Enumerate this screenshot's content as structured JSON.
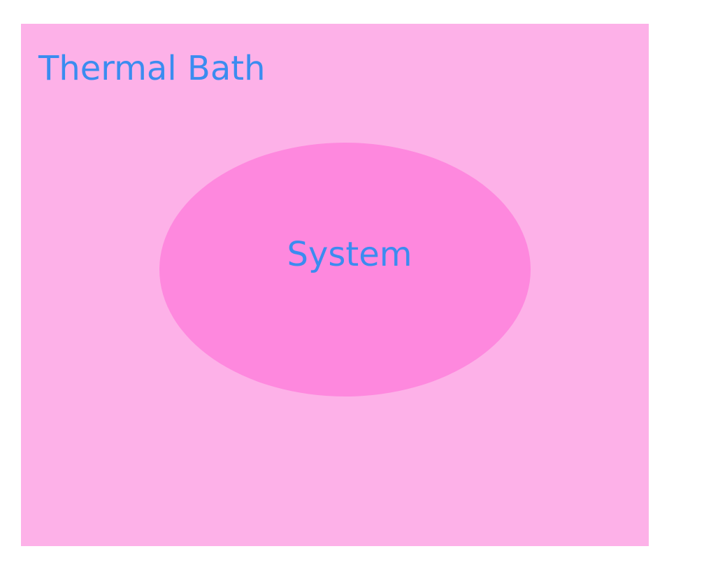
{
  "diagram": {
    "bath": {
      "label": "Thermal Bath",
      "fill": "#fdb1e8"
    },
    "system": {
      "label": "System",
      "fill": "#fe88de"
    },
    "text_color": "#3b8cf0"
  }
}
